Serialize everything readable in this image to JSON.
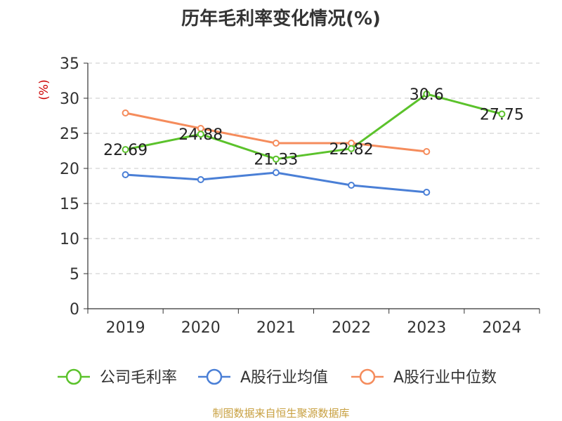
{
  "chart_data": {
    "type": "line",
    "title": "历年毛利率变化情况(%)",
    "ylabel": "(%)",
    "categories": [
      "2019",
      "2020",
      "2021",
      "2022",
      "2023",
      "2024"
    ],
    "ylim": [
      0,
      35
    ],
    "yticks": [
      "0",
      "5",
      "10",
      "15",
      "20",
      "25",
      "30",
      "35"
    ],
    "grid": true,
    "legend_position": "bottom",
    "series": [
      {
        "name": "公司毛利率",
        "color": "#5bc22b",
        "values": [
          22.69,
          24.88,
          21.33,
          22.82,
          30.6,
          27.75
        ],
        "labels": [
          "22.69",
          "24.88",
          "21.33",
          "22.82",
          "30.6",
          "27.75"
        ]
      },
      {
        "name": "A股行业均值",
        "color": "#4a7fd6",
        "values": [
          19.1,
          18.4,
          19.4,
          17.6,
          16.6,
          null
        ],
        "labels": []
      },
      {
        "name": "A股行业中位数",
        "color": "#f58c5c",
        "values": [
          27.9,
          25.7,
          23.6,
          23.6,
          22.4,
          null
        ],
        "labels": []
      }
    ]
  },
  "source": "制图数据来自恒生聚源数据库"
}
